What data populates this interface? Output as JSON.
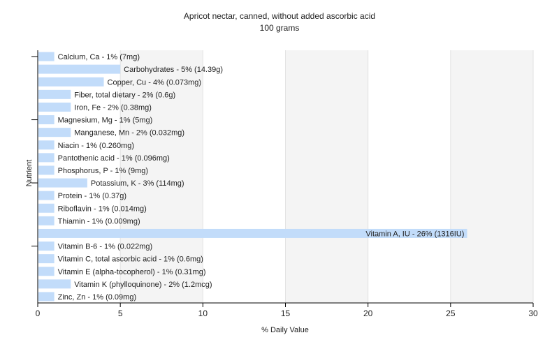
{
  "chart_data": {
    "type": "bar",
    "orientation": "horizontal",
    "title": "Apricot nectar, canned, without added ascorbic acid",
    "subtitle": "100 grams",
    "xlabel": "% Daily Value",
    "ylabel": "Nutrient",
    "xlim": [
      0,
      30
    ],
    "xticks": [
      0,
      5,
      10,
      15,
      20,
      25,
      30
    ],
    "grid": true,
    "bar_color": "#c2dcfa",
    "categories": [
      "Calcium, Ca",
      "Carbohydrates",
      "Copper, Cu",
      "Fiber, total dietary",
      "Iron, Fe",
      "Magnesium, Mg",
      "Manganese, Mn",
      "Niacin",
      "Pantothenic acid",
      "Phosphorus, P",
      "Potassium, K",
      "Protein",
      "Riboflavin",
      "Thiamin",
      "Vitamin A, IU",
      "Vitamin B-6",
      "Vitamin C, total ascorbic acid",
      "Vitamin E (alpha-tocopherol)",
      "Vitamin K (phylloquinone)",
      "Zinc, Zn"
    ],
    "values": [
      1,
      5,
      4,
      2,
      2,
      1,
      2,
      1,
      1,
      1,
      3,
      1,
      1,
      1,
      26,
      1,
      1,
      1,
      2,
      1
    ],
    "labels": [
      "Calcium, Ca - 1% (7mg)",
      "Carbohydrates - 5% (14.39g)",
      "Copper, Cu - 4% (0.073mg)",
      "Fiber, total dietary - 2% (0.6g)",
      "Iron, Fe - 2% (0.38mg)",
      "Magnesium, Mg - 1% (5mg)",
      "Manganese, Mn - 2% (0.032mg)",
      "Niacin - 1% (0.260mg)",
      "Pantothenic acid - 1% (0.096mg)",
      "Phosphorus, P - 1% (9mg)",
      "Potassium, K - 3% (114mg)",
      "Protein - 1% (0.37g)",
      "Riboflavin - 1% (0.014mg)",
      "Thiamin - 1% (0.009mg)",
      "Vitamin A, IU - 26% (1316IU)",
      "Vitamin B-6 - 1% (0.022mg)",
      "Vitamin C, total ascorbic acid - 1% (0.6mg)",
      "Vitamin E (alpha-tocopherol) - 1% (0.31mg)",
      "Vitamin K (phylloquinone) - 2% (1.2mcg)",
      "Zinc, Zn - 1% (0.09mg)"
    ]
  }
}
